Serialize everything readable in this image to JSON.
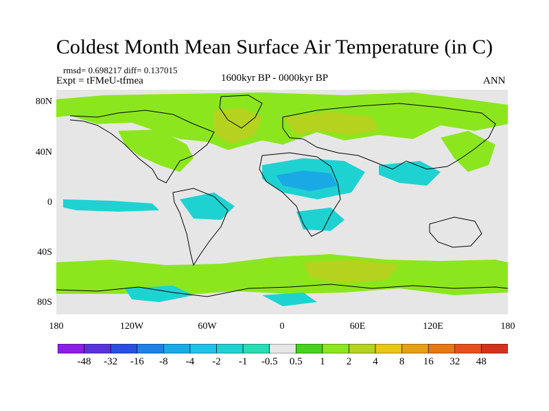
{
  "title": "Coldest Month Mean Surface Air Temperature (in C)",
  "stats": "rmsd= 0.698217 diff= 0.137015",
  "experiment": "Expt = tFMeU-tfmea",
  "period": "1600kyr BP - 0000kyr BP",
  "season": "ANN",
  "lat_ticks": [
    "80N",
    "40N",
    "0",
    "40S",
    "80S"
  ],
  "lon_ticks": [
    "180",
    "120W",
    "60W",
    "0",
    "60E",
    "120E",
    "180"
  ],
  "colorbar": {
    "colors": [
      "#8c1ee6",
      "#5a32dc",
      "#2a4fe0",
      "#1e80e6",
      "#19aae6",
      "#1ec3e6",
      "#1ed2d2",
      "#28dcb4",
      "#e6e6e6",
      "#46d21e",
      "#8ce61e",
      "#b4d21e",
      "#e6c814",
      "#e6a014",
      "#e67814",
      "#e6501e",
      "#d2321e"
    ],
    "labels": [
      "-48",
      "-32",
      "-16",
      "-8",
      "-4",
      "-2",
      "-1",
      "-0.5",
      "0.5",
      "1",
      "2",
      "4",
      "8",
      "16",
      "32",
      "48"
    ]
  }
}
